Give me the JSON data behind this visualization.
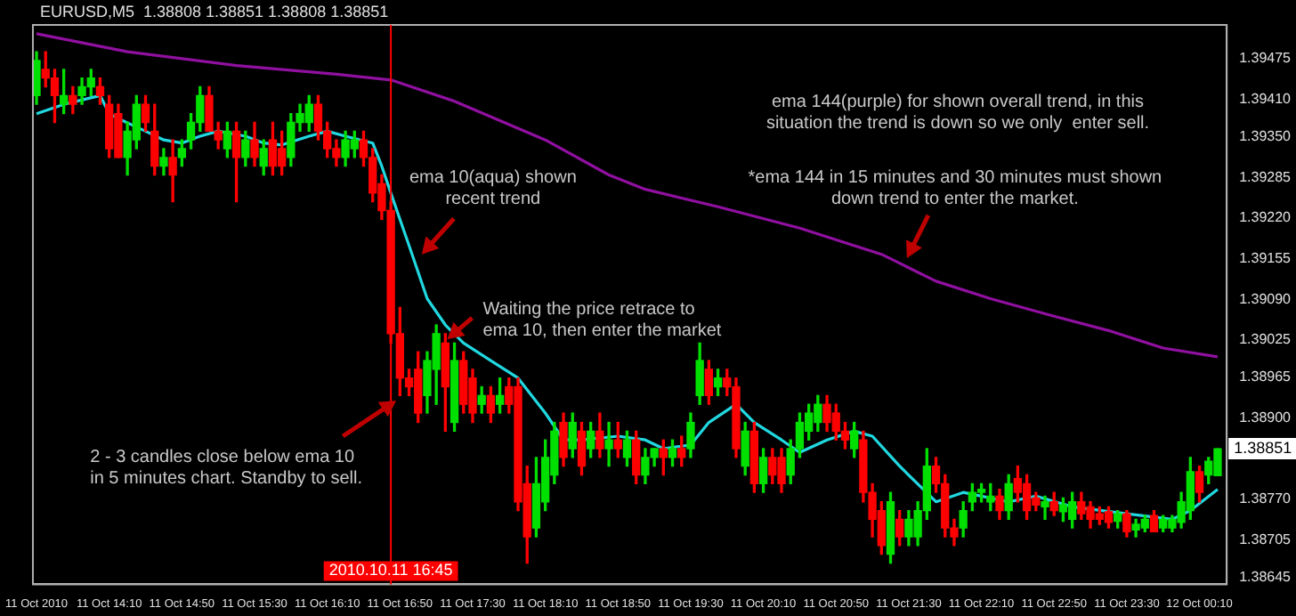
{
  "chart_data": {
    "type": "candlestick",
    "title": "EURUSD,M5  1.38808 1.38851 1.38808 1.38851",
    "x": [
      "2010-10-11T13:30",
      "2010-10-11T13:35",
      "2010-10-11T13:40",
      "2010-10-11T13:45",
      "2010-10-11T13:50",
      "2010-10-11T13:55",
      "2010-10-11T14:00",
      "2010-10-11T14:05",
      "2010-10-11T14:10",
      "2010-10-11T14:15",
      "2010-10-11T14:20",
      "2010-10-11T14:25",
      "2010-10-11T14:30",
      "2010-10-11T14:35",
      "2010-10-11T14:40",
      "2010-10-11T14:45",
      "2010-10-11T14:50",
      "2010-10-11T14:55",
      "2010-10-11T15:00",
      "2010-10-11T15:05",
      "2010-10-11T15:10",
      "2010-10-11T15:15",
      "2010-10-11T15:20",
      "2010-10-11T15:25",
      "2010-10-11T15:30",
      "2010-10-11T15:35",
      "2010-10-11T15:40",
      "2010-10-11T15:45",
      "2010-10-11T15:50",
      "2010-10-11T15:55",
      "2010-10-11T16:00",
      "2010-10-11T16:05",
      "2010-10-11T16:10",
      "2010-10-11T16:15",
      "2010-10-11T16:20",
      "2010-10-11T16:25",
      "2010-10-11T16:30",
      "2010-10-11T16:35",
      "2010-10-11T16:40",
      "2010-10-11T16:45",
      "2010-10-11T16:50",
      "2010-10-11T16:55",
      "2010-10-11T17:00",
      "2010-10-11T17:05",
      "2010-10-11T17:10",
      "2010-10-11T17:15",
      "2010-10-11T17:20",
      "2010-10-11T17:25",
      "2010-10-11T17:30",
      "2010-10-11T17:35",
      "2010-10-11T17:40",
      "2010-10-11T17:45",
      "2010-10-11T17:50",
      "2010-10-11T17:55",
      "2010-10-11T18:00",
      "2010-10-11T18:05",
      "2010-10-11T18:10",
      "2010-10-11T18:15",
      "2010-10-11T18:20",
      "2010-10-11T18:25",
      "2010-10-11T18:30",
      "2010-10-11T18:35",
      "2010-10-11T18:40",
      "2010-10-11T18:45",
      "2010-10-11T18:50",
      "2010-10-11T18:55",
      "2010-10-11T19:00",
      "2010-10-11T19:05",
      "2010-10-11T19:10",
      "2010-10-11T19:15",
      "2010-10-11T19:20",
      "2010-10-11T19:25",
      "2010-10-11T19:30",
      "2010-10-11T19:35",
      "2010-10-11T19:40",
      "2010-10-11T19:45",
      "2010-10-11T19:50",
      "2010-10-11T19:55",
      "2010-10-11T20:00",
      "2010-10-11T20:05",
      "2010-10-11T20:10",
      "2010-10-11T20:15",
      "2010-10-11T20:20",
      "2010-10-11T20:25",
      "2010-10-11T20:30",
      "2010-10-11T20:35",
      "2010-10-11T20:40",
      "2010-10-11T20:45",
      "2010-10-11T20:50",
      "2010-10-11T20:55",
      "2010-10-11T21:00",
      "2010-10-11T21:05",
      "2010-10-11T21:10",
      "2010-10-11T21:15",
      "2010-10-11T21:20",
      "2010-10-11T21:25",
      "2010-10-11T21:30",
      "2010-10-11T21:35",
      "2010-10-11T21:40",
      "2010-10-11T21:45",
      "2010-10-11T21:50",
      "2010-10-11T21:55",
      "2010-10-11T22:00",
      "2010-10-11T22:05",
      "2010-10-11T22:10",
      "2010-10-11T22:15",
      "2010-10-11T22:20",
      "2010-10-11T22:25",
      "2010-10-11T22:30",
      "2010-10-11T22:35",
      "2010-10-11T22:40",
      "2010-10-11T22:45",
      "2010-10-11T22:50",
      "2010-10-11T22:55",
      "2010-10-11T23:00",
      "2010-10-11T23:05",
      "2010-10-11T23:10",
      "2010-10-11T23:15",
      "2010-10-11T23:20",
      "2010-10-11T23:25",
      "2010-10-11T23:30",
      "2010-10-11T23:35",
      "2010-10-11T23:40",
      "2010-10-11T23:45",
      "2010-10-11T23:50",
      "2010-10-11T23:55",
      "2010-10-12T00:00",
      "2010-10-12T00:05",
      "2010-10-12T00:10",
      "2010-10-12T00:15",
      "2010-10-12T00:20"
    ],
    "ohlc": [
      [
        1.39416,
        1.39486,
        1.39402,
        1.39472
      ],
      [
        1.39458,
        1.39486,
        1.3943,
        1.39444
      ],
      [
        1.39444,
        1.39458,
        1.39373,
        1.39416
      ],
      [
        1.39402,
        1.39458,
        1.39387,
        1.39416
      ],
      [
        1.39416,
        1.3943,
        1.39387,
        1.39402
      ],
      [
        1.39416,
        1.39444,
        1.39402,
        1.3943
      ],
      [
        1.3943,
        1.39458,
        1.39416,
        1.39444
      ],
      [
        1.3943,
        1.39444,
        1.39402,
        1.39416
      ],
      [
        1.39402,
        1.39416,
        1.39317,
        1.39331
      ],
      [
        1.39387,
        1.39402,
        1.39317,
        1.39317
      ],
      [
        1.39317,
        1.39373,
        1.39289,
        1.39359
      ],
      [
        1.39345,
        1.39416,
        1.39331,
        1.39402
      ],
      [
        1.39402,
        1.39416,
        1.39359,
        1.39373
      ],
      [
        1.39359,
        1.39402,
        1.39289,
        1.39303
      ],
      [
        1.39303,
        1.39331,
        1.39289,
        1.39317
      ],
      [
        1.39317,
        1.39345,
        1.39246,
        1.39289
      ],
      [
        1.39317,
        1.39345,
        1.39303,
        1.39331
      ],
      [
        1.39345,
        1.39387,
        1.39331,
        1.39373
      ],
      [
        1.39373,
        1.3943,
        1.39359,
        1.39416
      ],
      [
        1.39416,
        1.3943,
        1.39359,
        1.39359
      ],
      [
        1.39359,
        1.39373,
        1.39331,
        1.39345
      ],
      [
        1.39331,
        1.39373,
        1.39317,
        1.39359
      ],
      [
        1.39359,
        1.39373,
        1.39246,
        1.39317
      ],
      [
        1.39317,
        1.39359,
        1.39303,
        1.39345
      ],
      [
        1.39345,
        1.39373,
        1.39303,
        1.39317
      ],
      [
        1.39303,
        1.39345,
        1.39289,
        1.39331
      ],
      [
        1.39345,
        1.39373,
        1.39289,
        1.39303
      ],
      [
        1.39331,
        1.39359,
        1.39289,
        1.39303
      ],
      [
        1.39317,
        1.39387,
        1.39303,
        1.39373
      ],
      [
        1.39373,
        1.39402,
        1.39359,
        1.39387
      ],
      [
        1.39373,
        1.39416,
        1.39359,
        1.39402
      ],
      [
        1.39402,
        1.39416,
        1.39345,
        1.39359
      ],
      [
        1.39359,
        1.39373,
        1.39317,
        1.39331
      ],
      [
        1.39331,
        1.39345,
        1.39303,
        1.39317
      ],
      [
        1.39317,
        1.39359,
        1.39303,
        1.39345
      ],
      [
        1.39331,
        1.39359,
        1.39317,
        1.39345
      ],
      [
        1.39345,
        1.39359,
        1.39303,
        1.39317
      ],
      [
        1.39317,
        1.39331,
        1.39246,
        1.3926
      ],
      [
        1.39275,
        1.39289,
        1.39218,
        1.39232
      ],
      [
        1.39232,
        1.39246,
        1.3902,
        1.39035
      ],
      [
        1.39035,
        1.39077,
        1.38936,
        1.38964
      ],
      [
        1.38964,
        1.38978,
        1.38936,
        1.3895
      ],
      [
        1.38978,
        1.39006,
        1.38893,
        1.38908
      ],
      [
        1.38936,
        1.39006,
        1.38908,
        1.38992
      ],
      [
        1.38978,
        1.39049,
        1.38922,
        1.39035
      ],
      [
        1.3902,
        1.39035,
        1.38879,
        1.3895
      ],
      [
        1.38893,
        1.3902,
        1.38879,
        1.38992
      ],
      [
        1.38992,
        1.39006,
        1.38908,
        1.38922
      ],
      [
        1.38964,
        1.38978,
        1.38893,
        1.38908
      ],
      [
        1.38922,
        1.3895,
        1.38908,
        1.38936
      ],
      [
        1.38936,
        1.3895,
        1.38893,
        1.38908
      ],
      [
        1.38922,
        1.38964,
        1.38908,
        1.38936
      ],
      [
        1.3895,
        1.38964,
        1.38908,
        1.38922
      ],
      [
        1.3895,
        1.38964,
        1.38752,
        1.38766
      ],
      [
        1.38795,
        1.38823,
        1.38668,
        1.3871
      ],
      [
        1.38724,
        1.38837,
        1.3871,
        1.38795
      ],
      [
        1.38766,
        1.38865,
        1.38752,
        1.38837
      ],
      [
        1.38809,
        1.38893,
        1.38795,
        1.38879
      ],
      [
        1.38893,
        1.38908,
        1.38823,
        1.38837
      ],
      [
        1.38851,
        1.38908,
        1.38837,
        1.38893
      ],
      [
        1.38879,
        1.38893,
        1.38809,
        1.38823
      ],
      [
        1.38851,
        1.38893,
        1.38837,
        1.38879
      ],
      [
        1.38879,
        1.38908,
        1.38837,
        1.38851
      ],
      [
        1.38851,
        1.38893,
        1.38823,
        1.38865
      ],
      [
        1.38865,
        1.38893,
        1.38837,
        1.38851
      ],
      [
        1.38837,
        1.38879,
        1.38823,
        1.38865
      ],
      [
        1.38865,
        1.38879,
        1.38795,
        1.38809
      ],
      [
        1.38809,
        1.38851,
        1.38795,
        1.38837
      ],
      [
        1.38837,
        1.38851,
        1.38823,
        1.38851
      ],
      [
        1.38851,
        1.38865,
        1.38809,
        1.38837
      ],
      [
        1.38837,
        1.38865,
        1.38823,
        1.38851
      ],
      [
        1.38851,
        1.38871,
        1.38823,
        1.38837
      ],
      [
        1.38851,
        1.38908,
        1.38837,
        1.38893
      ],
      [
        1.38936,
        1.3902,
        1.38922,
        1.38992
      ],
      [
        1.38978,
        1.38992,
        1.38922,
        1.38936
      ],
      [
        1.3895,
        1.38978,
        1.38936,
        1.38964
      ],
      [
        1.38964,
        1.38978,
        1.38936,
        1.3895
      ],
      [
        1.3895,
        1.38964,
        1.38837,
        1.38851
      ],
      [
        1.38823,
        1.38893,
        1.38809,
        1.38879
      ],
      [
        1.38879,
        1.38893,
        1.38781,
        1.38795
      ],
      [
        1.38795,
        1.38851,
        1.38781,
        1.38837
      ],
      [
        1.38837,
        1.38851,
        1.38795,
        1.38809
      ],
      [
        1.38837,
        1.38851,
        1.38781,
        1.38795
      ],
      [
        1.38809,
        1.38865,
        1.38795,
        1.38851
      ],
      [
        1.38851,
        1.38908,
        1.38837,
        1.38893
      ],
      [
        1.38879,
        1.38922,
        1.38865,
        1.38908
      ],
      [
        1.38893,
        1.38936,
        1.38879,
        1.38922
      ],
      [
        1.38922,
        1.38936,
        1.38879,
        1.38893
      ],
      [
        1.38908,
        1.38922,
        1.38865,
        1.38879
      ],
      [
        1.38879,
        1.38893,
        1.38851,
        1.38865
      ],
      [
        1.38851,
        1.38893,
        1.38837,
        1.38879
      ],
      [
        1.38865,
        1.38879,
        1.38766,
        1.38781
      ],
      [
        1.38781,
        1.38795,
        1.3871,
        1.38738
      ],
      [
        1.38752,
        1.38766,
        1.38682,
        1.38696
      ],
      [
        1.38682,
        1.38781,
        1.38668,
        1.38766
      ],
      [
        1.38738,
        1.38752,
        1.38696,
        1.3871
      ],
      [
        1.3871,
        1.38752,
        1.38696,
        1.38738
      ],
      [
        1.3871,
        1.38766,
        1.38696,
        1.38752
      ],
      [
        1.38752,
        1.38851,
        1.38738,
        1.38823
      ],
      [
        1.38823,
        1.38837,
        1.38781,
        1.38795
      ],
      [
        1.38795,
        1.38809,
        1.3871,
        1.38724
      ],
      [
        1.38724,
        1.38738,
        1.38696,
        1.3871
      ],
      [
        1.38724,
        1.38766,
        1.3871,
        1.38752
      ],
      [
        1.38766,
        1.38795,
        1.38752,
        1.38781
      ],
      [
        1.38781,
        1.38795,
        1.38766,
        1.38786
      ],
      [
        1.38766,
        1.38795,
        1.38752,
        1.38775
      ],
      [
        1.38775,
        1.38786,
        1.38738,
        1.38752
      ],
      [
        1.38752,
        1.38809,
        1.38738,
        1.38795
      ],
      [
        1.38803,
        1.38823,
        1.38766,
        1.38781
      ],
      [
        1.38795,
        1.38809,
        1.38738,
        1.38752
      ],
      [
        1.38772,
        1.38781,
        1.38752,
        1.38761
      ],
      [
        1.38758,
        1.38775,
        1.38738,
        1.38766
      ],
      [
        1.38766,
        1.38781,
        1.38744,
        1.38752
      ],
      [
        1.3875,
        1.38772,
        1.38735,
        1.38761
      ],
      [
        1.38738,
        1.38781,
        1.38724,
        1.38766
      ],
      [
        1.38766,
        1.38781,
        1.38738,
        1.38747
      ],
      [
        1.38758,
        1.38766,
        1.38724,
        1.38738
      ],
      [
        1.38747,
        1.38758,
        1.3873,
        1.38738
      ],
      [
        1.3875,
        1.38758,
        1.38724,
        1.38733
      ],
      [
        1.38735,
        1.38752,
        1.38724,
        1.38747
      ],
      [
        1.38747,
        1.38752,
        1.3871,
        1.38718
      ],
      [
        1.38721,
        1.38738,
        1.3871,
        1.3873
      ],
      [
        1.38724,
        1.38744,
        1.38718,
        1.38738
      ],
      [
        1.38744,
        1.38752,
        1.38718,
        1.38718
      ],
      [
        1.38724,
        1.38744,
        1.38718,
        1.38738
      ],
      [
        1.38724,
        1.38744,
        1.38718,
        1.38738
      ],
      [
        1.38733,
        1.38781,
        1.38724,
        1.38766
      ],
      [
        1.38752,
        1.38837,
        1.38738,
        1.38814
      ],
      [
        1.38814,
        1.38823,
        1.38766,
        1.38781
      ],
      [
        1.38809,
        1.38837,
        1.38795,
        1.38831
      ],
      [
        1.38808,
        1.38851,
        1.38808,
        1.38851
      ]
    ],
    "series": [
      {
        "type": "line",
        "color": "#9010a0",
        "x": [
          "2010-10-11T13:30",
          "2010-10-11T14:20",
          "2010-10-11T15:20",
          "2010-10-11T16:15",
          "2010-10-11T16:45",
          "2010-10-11T17:20",
          "2010-10-11T18:10",
          "2010-10-11T18:45",
          "2010-10-11T19:05",
          "2010-10-11T19:45",
          "2010-10-11T20:30",
          "2010-10-11T21:15",
          "2010-10-11T21:45",
          "2010-10-11T22:15",
          "2010-10-11T22:50",
          "2010-10-11T23:20",
          "2010-10-11T23:50",
          "2010-10-12T00:20"
        ],
        "values": [
          1.39515,
          1.39486,
          1.39464,
          1.3945,
          1.39441,
          1.39407,
          1.39345,
          1.39289,
          1.39266,
          1.39238,
          1.39204,
          1.39162,
          1.39119,
          1.39091,
          1.39063,
          1.3904,
          1.39012,
          1.38998
        ]
      },
      {
        "type": "line",
        "color": "#20d8e0",
        "x": [
          "2010-10-11T13:30",
          "2010-10-11T13:45",
          "2010-10-11T14:05",
          "2010-10-11T14:10",
          "2010-10-11T14:15",
          "2010-10-11T14:30",
          "2010-10-11T14:40",
          "2010-10-11T14:50",
          "2010-10-11T15:00",
          "2010-10-11T15:10",
          "2010-10-11T15:25",
          "2010-10-11T15:35",
          "2010-10-11T15:45",
          "2010-10-11T16:00",
          "2010-10-11T16:10",
          "2010-10-11T16:20",
          "2010-10-11T16:35",
          "2010-10-11T16:40",
          "2010-10-11T16:45",
          "2010-10-11T16:55",
          "2010-10-11T17:05",
          "2010-10-11T17:15",
          "2010-10-11T17:25",
          "2010-10-11T17:40",
          "2010-10-11T17:55",
          "2010-10-11T18:10",
          "2010-10-11T18:20",
          "2010-10-11T18:30",
          "2010-10-11T18:50",
          "2010-10-11T19:05",
          "2010-10-11T19:15",
          "2010-10-11T19:30",
          "2010-10-11T19:40",
          "2010-10-11T19:55",
          "2010-10-11T20:05",
          "2010-10-11T20:20",
          "2010-10-11T20:30",
          "2010-10-11T20:45",
          "2010-10-11T21:00",
          "2010-10-11T21:10",
          "2010-10-11T21:25",
          "2010-10-11T21:45",
          "2010-10-11T22:00",
          "2010-10-11T22:25",
          "2010-10-11T22:40",
          "2010-10-11T23:00",
          "2010-10-11T23:30",
          "2010-10-11T23:55",
          "2010-10-12T00:05",
          "2010-10-12T00:20"
        ],
        "values": [
          1.39387,
          1.39402,
          1.39416,
          1.39387,
          1.39379,
          1.39359,
          1.39345,
          1.3934,
          1.39351,
          1.39359,
          1.39351,
          1.3934,
          1.39337,
          1.39351,
          1.39359,
          1.39351,
          1.3934,
          1.39303,
          1.3926,
          1.39176,
          1.39091,
          1.39049,
          1.3902,
          1.38992,
          1.38964,
          1.38908,
          1.38865,
          1.38865,
          1.38871,
          1.38865,
          1.38851,
          1.38857,
          1.38893,
          1.38922,
          1.38893,
          1.38865,
          1.38845,
          1.38865,
          1.38879,
          1.38871,
          1.38823,
          1.38766,
          1.38781,
          1.38766,
          1.38775,
          1.38758,
          1.38747,
          1.38738,
          1.38752,
          1.38786
        ]
      }
    ],
    "xlim": [
      "2010-10-11T13:28",
      "2010-10-12T00:25"
    ],
    "xticks": [
      {
        "value": "2010-10-11T13:30",
        "label": "11 Oct 2010"
      },
      {
        "value": "2010-10-11T14:10",
        "label": "11 Oct 14:10"
      },
      {
        "value": "2010-10-11T14:50",
        "label": "11 Oct 14:50"
      },
      {
        "value": "2010-10-11T15:30",
        "label": "11 Oct 15:30"
      },
      {
        "value": "2010-10-11T16:10",
        "label": "11 Oct 16:10"
      },
      {
        "value": "2010-10-11T16:50",
        "label": "11 Oct 16:50"
      },
      {
        "value": "2010-10-11T17:30",
        "label": "11 Oct 17:30"
      },
      {
        "value": "2010-10-11T18:10",
        "label": "11 Oct 18:10"
      },
      {
        "value": "2010-10-11T18:50",
        "label": "11 Oct 18:50"
      },
      {
        "value": "2010-10-11T19:30",
        "label": "11 Oct 19:30"
      },
      {
        "value": "2010-10-11T20:10",
        "label": "11 Oct 20:10"
      },
      {
        "value": "2010-10-11T20:50",
        "label": "11 Oct 20:50"
      },
      {
        "value": "2010-10-11T21:30",
        "label": "11 Oct 21:30"
      },
      {
        "value": "2010-10-11T22:10",
        "label": "11 Oct 22:10"
      },
      {
        "value": "2010-10-11T22:50",
        "label": "11 Oct 22:50"
      },
      {
        "value": "2010-10-11T23:30",
        "label": "11 Oct 23:30"
      },
      {
        "value": "2010-10-12T00:10",
        "label": "12 Oct 00:10"
      }
    ],
    "ylim": [
      1.38634,
      1.39529
    ],
    "yticks": [
      1.39475,
      {
        "value": 1.3941,
        "label": "1.39410"
      },
      {
        "value": 1.3935,
        "label": "1.39350"
      },
      1.39285,
      {
        "value": 1.3922,
        "label": "1.39220"
      },
      1.39155,
      {
        "value": 1.3909,
        "label": "1.39090"
      },
      1.39025,
      1.38965,
      {
        "value": 1.389,
        "label": "1.38900"
      },
      {
        "value": 1.3877,
        "label": "1.38770"
      },
      1.38705,
      1.38645
    ],
    "ref_lines": [
      {
        "axis": "x",
        "value": "2010-10-11T16:45",
        "label": "2010.10.11 16:45",
        "color": "#ff0000"
      }
    ],
    "annotations": [
      {
        "text": "ema 10(aqua) shown\nrecent trend",
        "x": "2010-10-11T17:02",
        "y": 1.39162
      },
      {
        "text": "Waiting the price retrace to\nema 10, then enter the market",
        "x": "2010-10-11T17:16",
        "y": 1.39026
      },
      {
        "text": "2 - 3 candles close below ema 10\nin 5 minutes chart. Standby to sell.",
        "x": "2010-10-11T16:48",
        "y": 1.38928
      },
      "ema 144(purple) for shown overall trend, in this\nsituation the trend is down so we only  enter sell.",
      {
        "text": "*ema 144 in 15 minutes and 30 minutes must shown\ndown trend to enter the market.",
        "x": "2010-10-11T21:29",
        "y": 1.39156
      },
      {
        "text": "1.38851",
        "y": 1.38851
      }
    ],
    "grid": false,
    "legend": false,
    "marker": "none"
  }
}
